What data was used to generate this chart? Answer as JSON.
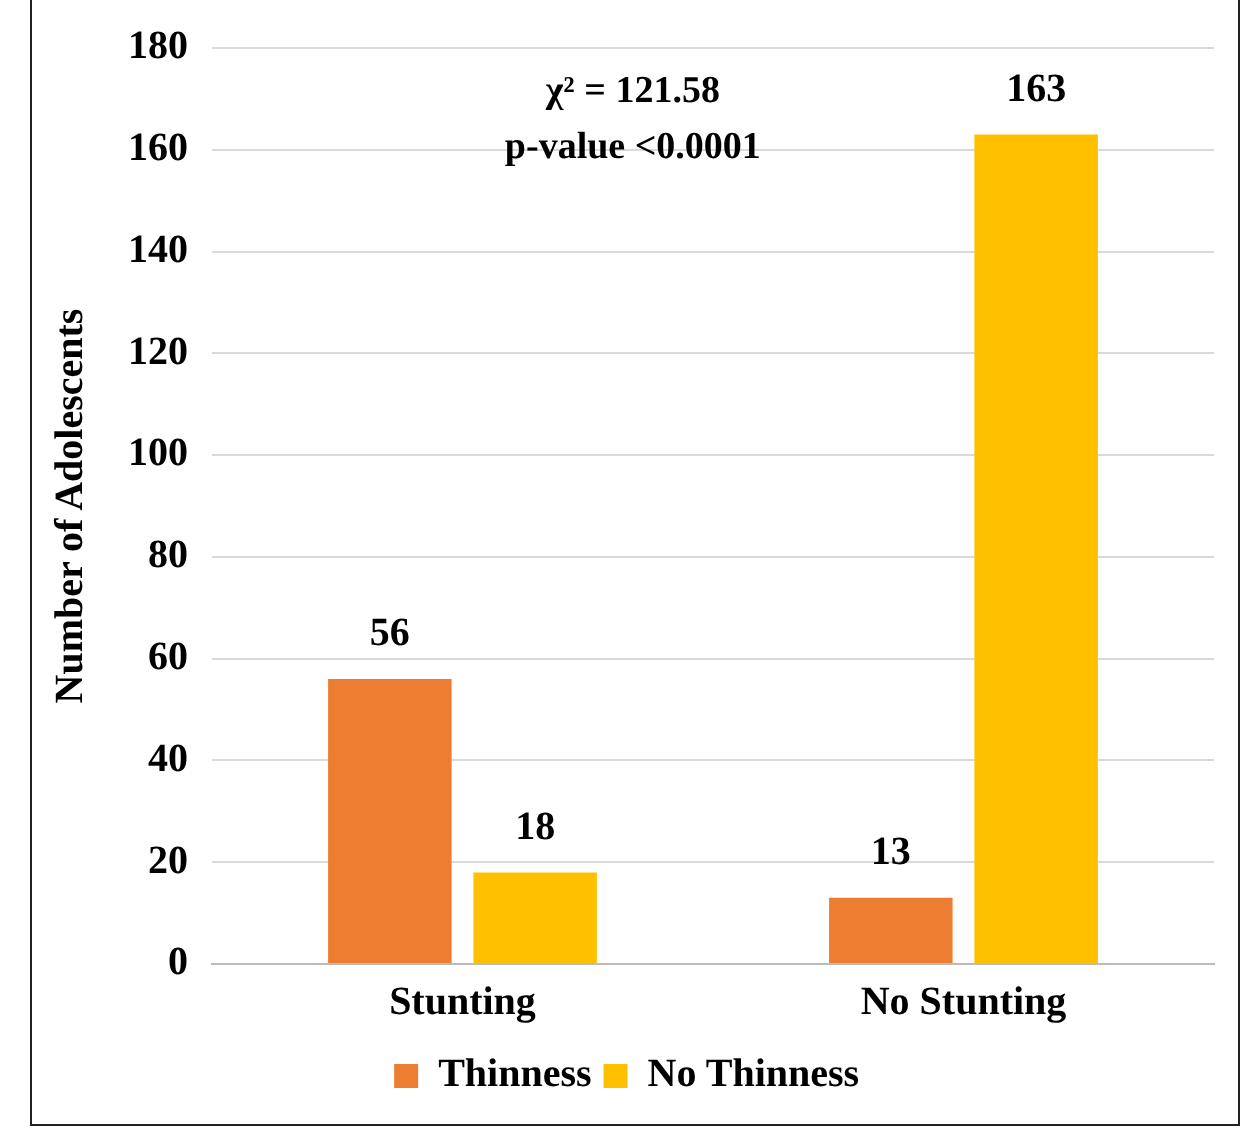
{
  "chart_data": {
    "type": "bar",
    "ylabel": "Number of Adolescents",
    "categories": [
      "Stunting",
      "No Stunting"
    ],
    "series": [
      {
        "name": "Thinness",
        "color": "#ed7d31",
        "values": [
          56,
          13
        ]
      },
      {
        "name": "No Thinness",
        "color": "#ffc000",
        "values": [
          18,
          163
        ]
      }
    ],
    "ylim": [
      0,
      180
    ],
    "yticks": [
      0,
      20,
      40,
      60,
      80,
      100,
      120,
      140,
      160,
      180
    ],
    "grid": "y",
    "legend": "bottom",
    "data_labels": true,
    "annotations": [
      "χ² = 121.58",
      "p-value <0.0001"
    ]
  }
}
